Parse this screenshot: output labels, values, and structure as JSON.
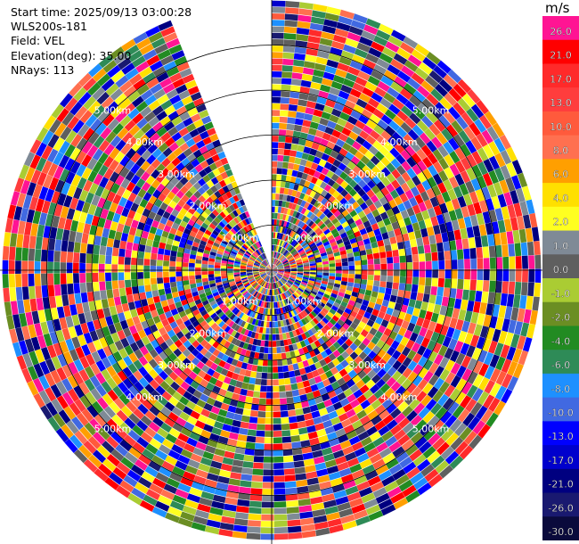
{
  "header": {
    "start_time": "Start time: 2025/09/13 03:00:28",
    "instrument": "WLS200s-181",
    "field": "Field: VEL",
    "elevation": "Elevation(deg): 35.00",
    "nrays": "NRays: 113"
  },
  "chart_data": {
    "type": "heatmap",
    "projection": "polar-ppi",
    "field": "VEL",
    "start_time": "2025/09/13 03:00:28",
    "elevation_deg": 35.0,
    "nrays": 113,
    "range_unit": "km",
    "range_rings": [
      {
        "value": 1.0,
        "label": "1.00km"
      },
      {
        "value": 2.0,
        "label": "2.00km"
      },
      {
        "value": 3.0,
        "label": "3.00km"
      },
      {
        "value": 4.0,
        "label": "4.00km"
      },
      {
        "value": 5.0,
        "label": "5.00km"
      }
    ],
    "max_range_km": 6.0,
    "missing_sector_deg": [
      338,
      360
    ],
    "colorbar": {
      "unit": "m/s",
      "levels": [
        {
          "value": "26.0",
          "color": "#ff1493"
        },
        {
          "value": "21.0",
          "color": "#ff0000"
        },
        {
          "value": "17.0",
          "color": "#ff2a2a"
        },
        {
          "value": "13.0",
          "color": "#ff3d3d"
        },
        {
          "value": "10.0",
          "color": "#ff5a3c"
        },
        {
          "value": "8.0",
          "color": "#ff7050"
        },
        {
          "value": "6.0",
          "color": "#ff9f00"
        },
        {
          "value": "4.0",
          "color": "#ffe000"
        },
        {
          "value": "2.0",
          "color": "#ffff20"
        },
        {
          "value": "1.0",
          "color": "#7f8a96"
        },
        {
          "value": "0.0",
          "color": "#5f5f5f"
        },
        {
          "value": "-1.0",
          "color": "#aacc33"
        },
        {
          "value": "-2.0",
          "color": "#6b8e23"
        },
        {
          "value": "-4.0",
          "color": "#228b22"
        },
        {
          "value": "-6.0",
          "color": "#2e8b57"
        },
        {
          "value": "-8.0",
          "color": "#1e90ff"
        },
        {
          "value": "-10.0",
          "color": "#4169e1"
        },
        {
          "value": "-13.0",
          "color": "#0000ff"
        },
        {
          "value": "-17.0",
          "color": "#0000cd"
        },
        {
          "value": "-21.0",
          "color": "#000080"
        },
        {
          "value": "-26.0",
          "color": "#191970"
        },
        {
          "value": "-30.0",
          "color": ""
        }
      ],
      "range": [
        -30.0,
        30.0
      ]
    }
  }
}
